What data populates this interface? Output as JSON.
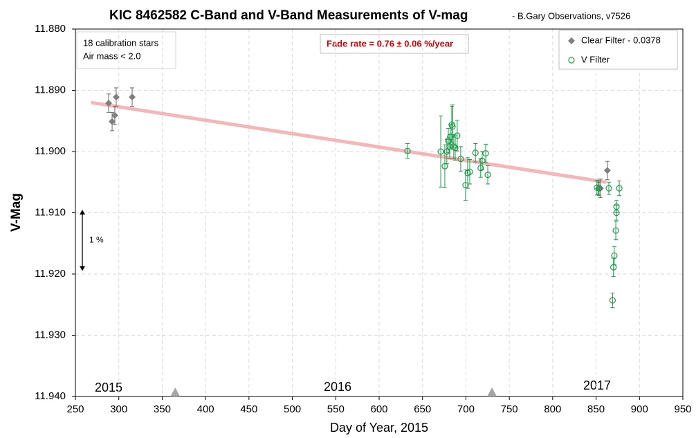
{
  "chart_data": {
    "type": "scatter",
    "title": "KIC 8462582 C-Band and V-Band Measurements of V-mag",
    "subtitle": "- B.Gary Observations, v7526",
    "x_label": "Day of Year, 2015",
    "y_label": "V-Mag",
    "xlim": [
      250,
      950
    ],
    "xticks": [
      250,
      300,
      350,
      400,
      450,
      500,
      550,
      600,
      650,
      700,
      750,
      800,
      850,
      900,
      950
    ],
    "ylim": [
      11.88,
      11.94
    ],
    "y_inverted": true,
    "yticks": [
      {
        "value": 11.88,
        "label": "11.880"
      },
      {
        "value": 11.89,
        "label": "11.890"
      },
      {
        "value": 11.9,
        "label": "11.900"
      },
      {
        "value": 11.91,
        "label": "11.910"
      },
      {
        "value": 11.92,
        "label": "11.920"
      },
      {
        "value": 11.93,
        "label": "11.930"
      },
      {
        "value": 11.94,
        "label": "11.940"
      }
    ],
    "grid": true,
    "legend_position": "top-right",
    "series": [
      {
        "name": "Clear Filter - 0.0378",
        "color": "#7f7f7f",
        "marker": "diamond",
        "x": [
          288.3,
          297,
          315.4,
          292.3,
          295.4,
          863,
          855,
          852.7
        ],
        "values": [
          11.8921,
          11.8911,
          11.8911,
          11.8951,
          11.8941,
          11.9031,
          11.906,
          11.906
        ],
        "errors": [
          0.0015,
          0.0015,
          0.0015,
          0.0015,
          0.0015,
          0.0015,
          0.0015,
          0.001
        ]
      },
      {
        "name": "V Filter",
        "color": "#1e9a4a",
        "marker": "circle-open",
        "x": [
          632.7,
          671,
          675.7,
          678,
          679.7,
          681.3,
          682,
          683.7,
          684.5,
          686,
          687.7,
          690,
          694,
          699.6,
          702,
          704.4,
          711,
          717,
          718.8,
          722.8,
          725.2,
          851,
          853.5,
          864.7,
          876.7,
          873.5,
          873.5,
          872.7,
          871,
          870,
          869
        ],
        "values": [
          11.8999,
          11.9,
          11.9024,
          11.9,
          11.8982,
          11.8992,
          11.8976,
          11.8956,
          11.8959,
          11.8992,
          11.8994,
          11.8974,
          11.9012,
          11.9055,
          11.9035,
          11.9033,
          11.9002,
          11.9027,
          11.9015,
          11.9003,
          11.9038,
          11.9059,
          11.906,
          11.906,
          11.906,
          11.909,
          11.91,
          11.9129,
          11.917,
          11.9189,
          11.9243
        ],
        "errors": [
          0.0012,
          0.0058,
          0.0035,
          0.002,
          0.002,
          0.002,
          0.002,
          0.003,
          0.0035,
          0.002,
          0.002,
          0.0025,
          0.002,
          0.0025,
          0.0025,
          0.002,
          0.0015,
          0.0015,
          0.0015,
          0.0015,
          0.0015,
          0.0012,
          0.0012,
          0.001,
          0.0012,
          0.001,
          0.0012,
          0.0015,
          0.0015,
          0.0015,
          0.0012
        ]
      }
    ],
    "trend_line": {
      "color": "#f4b6b6",
      "x": [
        268,
        862
      ],
      "values": [
        11.892,
        11.905
      ]
    },
    "year_starts": [
      365,
      730
    ],
    "year_labels": [
      "2015",
      "2016",
      "2017"
    ],
    "notes": [
      "18 calibration stars",
      "Air mass < 2.0"
    ],
    "fade_rate": "Fade rate  = 0.76 ± 0.06 %/year",
    "scale_arrow": {
      "label": "1 %",
      "values": [
        11.9095,
        11.9195
      ]
    }
  }
}
